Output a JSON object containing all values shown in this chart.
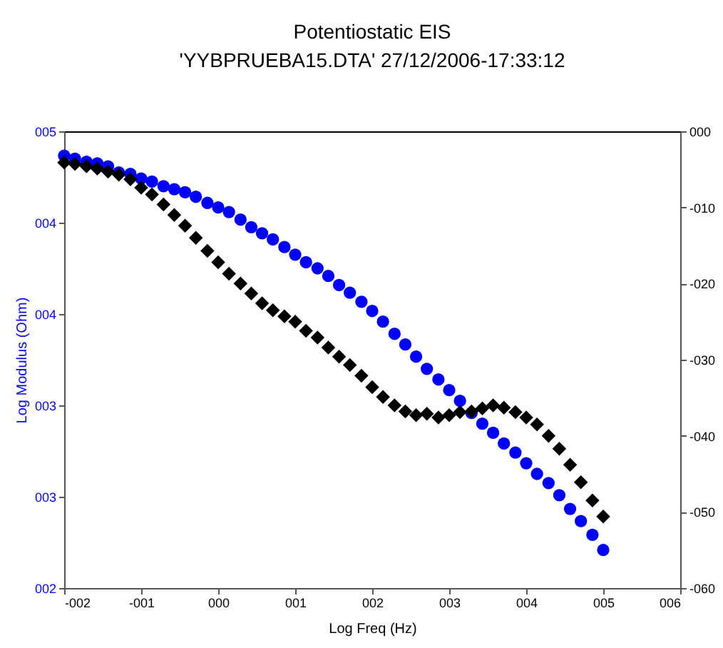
{
  "chart_data": {
    "type": "scatter",
    "title": "Potentiostatic EIS",
    "subtitle": "'YYBPRUEBA15.DTA' 27/12/2006-17:33:12",
    "xlabel": "Log Freq (Hz)",
    "ylabel": "Log Modulus (Ohm)",
    "x": [
      -2,
      -1.86,
      -1.71,
      -1.57,
      -1.43,
      -1.29,
      -1.14,
      -1,
      -0.86,
      -0.71,
      -0.57,
      -0.43,
      -0.29,
      -0.14,
      0,
      0.14,
      0.29,
      0.43,
      0.57,
      0.71,
      0.86,
      1,
      1.14,
      1.29,
      1.43,
      1.57,
      1.71,
      1.86,
      2,
      2.14,
      2.29,
      2.43,
      2.57,
      2.71,
      2.86,
      3,
      3.14,
      3.29,
      3.43,
      3.57,
      3.71,
      3.86,
      4,
      4.14,
      4.29,
      4.43,
      4.57,
      4.71,
      4.86,
      5
    ],
    "series": [
      {
        "color": "#0000ff",
        "marker": "circle",
        "values": [
          4.84,
          4.82,
          4.8,
          4.79,
          4.77,
          4.73,
          4.72,
          4.69,
          4.67,
          4.64,
          4.62,
          4.6,
          4.57,
          4.53,
          4.5,
          4.47,
          4.42,
          4.37,
          4.33,
          4.29,
          4.24,
          4.19,
          4.14,
          4.1,
          4.05,
          3.99,
          3.94,
          3.88,
          3.82,
          3.75,
          3.67,
          3.6,
          3.52,
          3.44,
          3.37,
          3.3,
          3.23,
          3.15,
          3.08,
          3.02,
          2.95,
          2.89,
          2.82,
          2.75,
          2.69,
          2.61,
          2.52,
          2.44,
          2.35,
          2.25
        ]
      },
      {
        "color": "#000000",
        "marker": "diamond",
        "axis": "y2",
        "values": [
          -4.1,
          -4.3,
          -4.6,
          -4.9,
          -5.3,
          -5.7,
          -6.3,
          -7.4,
          -8.3,
          -9.6,
          -11.0,
          -12.4,
          -14.0,
          -15.7,
          -17.2,
          -18.7,
          -20.0,
          -21.3,
          -22.6,
          -23.5,
          -24.3,
          -25.0,
          -26.2,
          -27.1,
          -28.4,
          -29.6,
          -30.7,
          -32.1,
          -33.6,
          -34.9,
          -36.0,
          -36.8,
          -37.3,
          -37.1,
          -37.6,
          -37.3,
          -36.9,
          -36.8,
          -36.4,
          -36.0,
          -36.3,
          -36.9,
          -37.6,
          -38.5,
          -40.0,
          -41.7,
          -43.8,
          -46.1,
          -48.5,
          -50.6
        ]
      }
    ],
    "xlim": [
      -2,
      6
    ],
    "xticks": [
      {
        "value": -2,
        "label": "-002"
      },
      {
        "value": -1,
        "label": "-001"
      },
      {
        "value": 0,
        "label": "000"
      },
      {
        "value": 1,
        "label": "001"
      },
      {
        "value": 2,
        "label": "002"
      },
      {
        "value": 3,
        "label": "003"
      },
      {
        "value": 4,
        "label": "004"
      },
      {
        "value": 5,
        "label": "005"
      },
      {
        "value": 6,
        "label": "006"
      }
    ],
    "ylim": [
      2,
      5
    ],
    "yticks": [
      {
        "value": 2,
        "label": "002"
      },
      {
        "value": 2.6,
        "label": "003"
      },
      {
        "value": 3.2,
        "label": "003"
      },
      {
        "value": 3.8,
        "label": "004"
      },
      {
        "value": 4.4,
        "label": "004"
      },
      {
        "value": 5,
        "label": "005"
      }
    ],
    "y2lim": [
      -60,
      0
    ],
    "y2ticks": [
      {
        "value": -60,
        "label": "-060"
      },
      {
        "value": -50,
        "label": "-050"
      },
      {
        "value": -40,
        "label": "-040"
      },
      {
        "value": -30,
        "label": "-030"
      },
      {
        "value": -20,
        "label": "-020"
      },
      {
        "value": -10,
        "label": "-010"
      },
      {
        "value": 0,
        "label": "000"
      }
    ]
  }
}
